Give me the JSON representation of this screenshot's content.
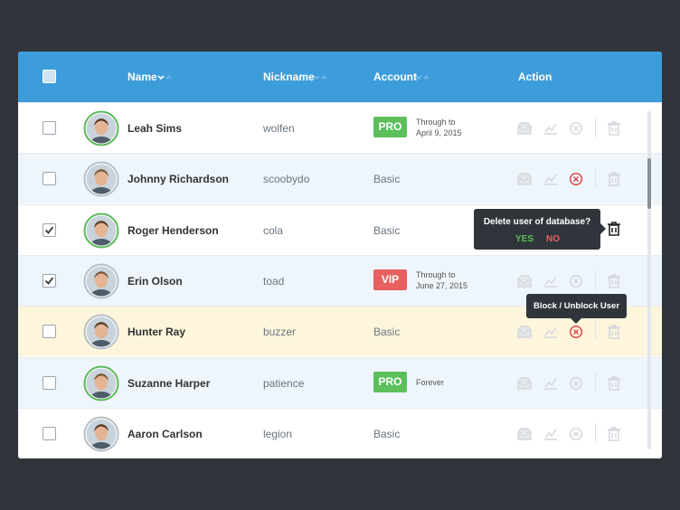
{
  "header": {
    "columns": [
      "Name",
      "Nickname",
      "Account",
      "Action"
    ]
  },
  "table": {
    "rows": [
      {
        "name": "Leah Sims",
        "nickname": "wolfen",
        "checked": false,
        "blocked": false,
        "avatar_ring": "#5cb85c",
        "account": {
          "badge": "PRO",
          "badge_color": "#5cbf5c",
          "note": [
            "Through to",
            "April 9, 2015"
          ]
        }
      },
      {
        "name": "Johnny Richardson",
        "nickname": "scoobydo",
        "checked": false,
        "blocked": true,
        "avatar_ring": "#b8bec6",
        "account": {
          "plan": "Basic"
        }
      },
      {
        "name": "Roger Henderson",
        "nickname": "cola",
        "checked": true,
        "blocked": false,
        "avatar_ring": "#5cb85c",
        "account": {
          "plan": "Basic"
        }
      },
      {
        "name": "Erin Olson",
        "nickname": "toad",
        "checked": true,
        "blocked": false,
        "avatar_ring": "#b8bec6",
        "account": {
          "badge": "VIP",
          "badge_color": "#e86060",
          "note": [
            "Through to",
            "June 27, 2015"
          ]
        }
      },
      {
        "name": "Hunter Ray",
        "nickname": "buzzer",
        "checked": false,
        "blocked": true,
        "avatar_ring": "#b8bec6",
        "account": {
          "plan": "Basic"
        }
      },
      {
        "name": "Suzanne Harper",
        "nickname": "patience",
        "checked": false,
        "blocked": false,
        "avatar_ring": "#5cb85c",
        "account": {
          "badge": "PRO",
          "badge_color": "#5cbf5c",
          "note": [
            "Forever"
          ]
        }
      },
      {
        "name": "Aaron Carlson",
        "nickname": "legion",
        "checked": false,
        "blocked": false,
        "avatar_ring": "#b8bec6",
        "account": {
          "plan": "Basic"
        }
      }
    ]
  },
  "tooltips": {
    "delete": {
      "question": "Delete user of database?",
      "yes": "YES",
      "no": "NO"
    },
    "block": "Block / Unblock User"
  }
}
